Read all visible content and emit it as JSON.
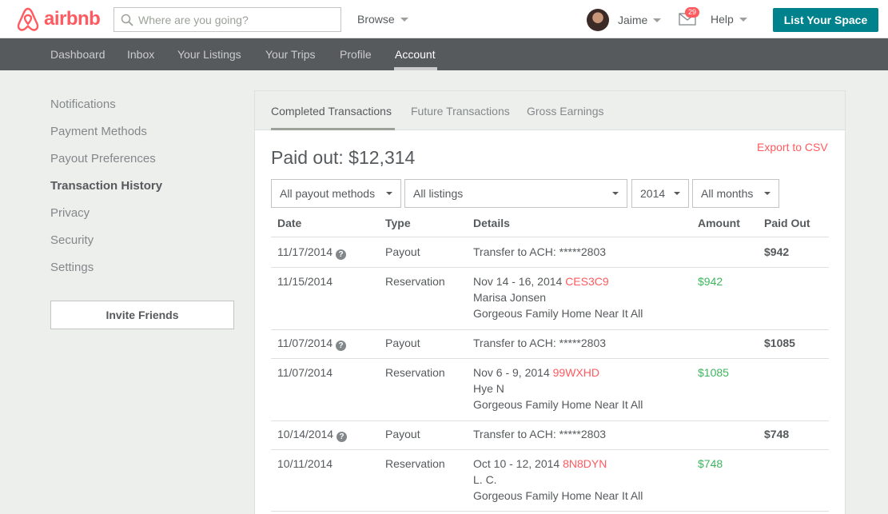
{
  "header": {
    "brand": "airbnb",
    "search_placeholder": "Where are you going?",
    "browse_label": "Browse",
    "user_name": "Jaime",
    "inbox_count": "29",
    "help_label": "Help",
    "cta_label": "List Your Space"
  },
  "subnav": {
    "items": [
      "Dashboard",
      "Inbox",
      "Your Listings",
      "Your Trips",
      "Profile",
      "Account"
    ],
    "active": "Account"
  },
  "sidebar": {
    "items": [
      "Notifications",
      "Payment Methods",
      "Payout Preferences",
      "Transaction History",
      "Privacy",
      "Security",
      "Settings"
    ],
    "active": "Transaction History",
    "invite_label": "Invite Friends"
  },
  "panel": {
    "tabs": [
      "Completed Transactions",
      "Future Transactions",
      "Gross Earnings"
    ],
    "active_tab": "Completed Transactions",
    "export_label": "Export to CSV",
    "paid_out_text": "Paid out: $12,314",
    "filters": {
      "payout_method": "All payout methods",
      "listing": "All listings",
      "year": "2014",
      "month": "All months"
    },
    "columns": [
      "Date",
      "Type",
      "Details",
      "Amount",
      "Paid Out"
    ],
    "rows": [
      {
        "date": "11/17/2014",
        "type": "Payout",
        "details": "Transfer to ACH: *****2803",
        "paid_out": "$942"
      },
      {
        "date": "11/15/2014",
        "type": "Reservation",
        "dates": "Nov 14 - 16, 2014",
        "code": "CES3C9",
        "guest": "Marisa Jonsen",
        "listing": "Gorgeous Family Home Near It All",
        "amount": "$942"
      },
      {
        "date": "11/07/2014",
        "type": "Payout",
        "details": "Transfer to ACH: *****2803",
        "paid_out": "$1085"
      },
      {
        "date": "11/07/2014",
        "type": "Reservation",
        "dates": "Nov 6 - 9, 2014",
        "code": "99WXHD",
        "guest": "Hye N",
        "listing": "Gorgeous Family Home Near It All",
        "amount": "$1085"
      },
      {
        "date": "10/14/2014",
        "type": "Payout",
        "details": "Transfer to ACH: *****2803",
        "paid_out": "$748"
      },
      {
        "date": "10/11/2014",
        "type": "Reservation",
        "dates": "Oct 10 - 12, 2014",
        "code": "8N8DYN",
        "guest": "L. C.",
        "listing": "Gorgeous Family Home Near It All",
        "amount": "$748"
      }
    ]
  },
  "colors": {
    "brand": "#ff5a5f",
    "cta": "#00828c",
    "subnav_bg": "#565a5c",
    "positive_amount": "#3cb65d"
  }
}
